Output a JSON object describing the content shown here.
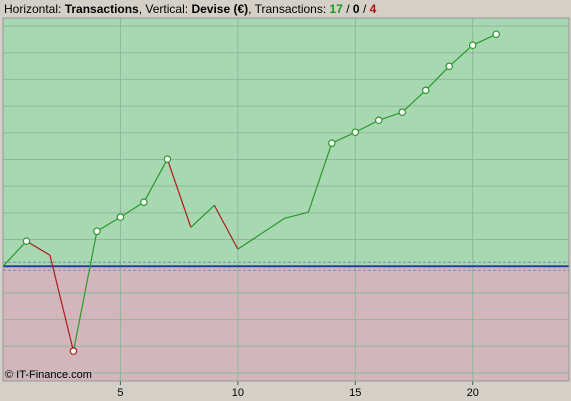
{
  "header": {
    "h_label": "Horizontal:",
    "h_value": "Transactions",
    "v_label": ", Vertical:",
    "v_value": "Devise (€)",
    "t_label": ", Transactions:",
    "wins": 17,
    "sep1": "/",
    "neutral": 0,
    "sep2": "/",
    "losses": 4
  },
  "footer": "© IT-Finance.com",
  "chart_data": {
    "type": "line",
    "x": [
      0,
      1,
      2,
      3,
      4,
      5,
      6,
      7,
      8,
      9,
      10,
      11,
      12,
      13,
      14,
      15,
      16,
      17,
      18,
      19,
      20,
      21
    ],
    "values": [
      0,
      0.94,
      0.41,
      -3.18,
      1.31,
      1.84,
      2.4,
      4.01,
      1.46,
      2.28,
      0.64,
      1.22,
      1.8,
      2.02,
      4.61,
      5.02,
      5.47,
      5.77,
      6.59,
      7.49,
      8.28,
      8.69
    ],
    "point_colors": [
      "#2a9a2a",
      "#2a9a2a",
      "#a81c1c",
      "#a81c1c",
      "#2a9a2a",
      "#2a9a2a",
      "#2a9a2a",
      "#2a9a2a",
      "#a81c1c",
      "#2a9a2a",
      "#a81c1c",
      "#2a9a2a",
      "#2a9a2a",
      "#2a9a2a",
      "#2a9a2a",
      "#2a9a2a",
      "#2a9a2a",
      "#2a9a2a",
      "#2a9a2a",
      "#2a9a2a",
      "#2a9a2a",
      "#2a9a2a"
    ],
    "markers": [
      false,
      true,
      false,
      true,
      true,
      true,
      true,
      true,
      false,
      false,
      false,
      false,
      false,
      false,
      true,
      true,
      true,
      true,
      true,
      true,
      true,
      true
    ],
    "xlim": [
      0,
      24.1
    ],
    "xticks": [
      5,
      10,
      15,
      20
    ],
    "ylim": [
      -4.3,
      9.3
    ],
    "ygrid": [
      -4,
      -3,
      -2,
      -1,
      1,
      2,
      3,
      4,
      5,
      6,
      7,
      8,
      9
    ],
    "above_color": "#a8d8b2",
    "below_color": "#d2b6bc",
    "zero_color": "#2040a0",
    "grid_color": "#8fb89a"
  }
}
